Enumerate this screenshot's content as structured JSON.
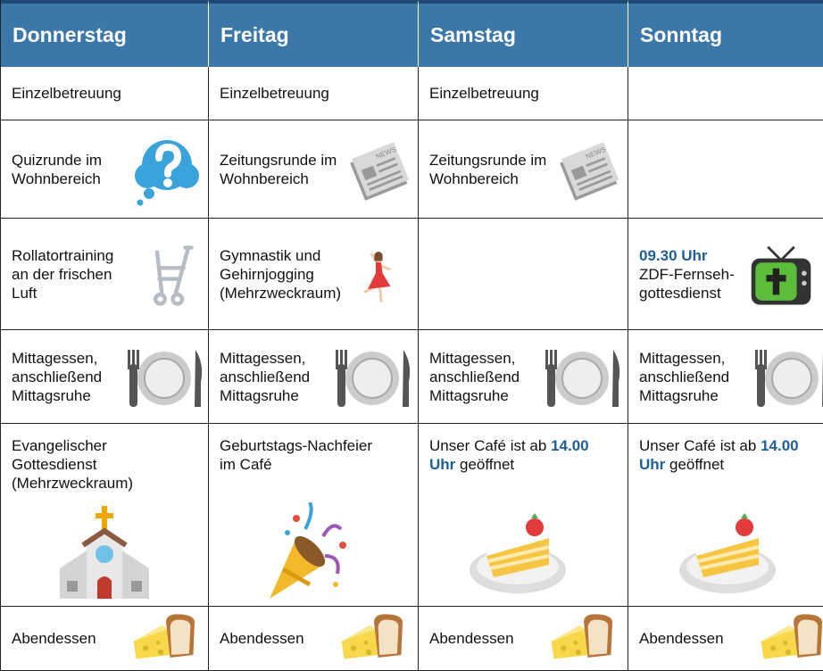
{
  "table": {
    "header": [
      "Donnerstag",
      "Freitag",
      "Samstag",
      "Sonntag"
    ],
    "rows": [
      [
        "Einzelbetreuung",
        "Einzelbetreuung",
        "Einzelbetreuung",
        null
      ],
      [
        "Quizrunde im\nWohnbereich",
        "Zeitungsrunde im\nWohnbereich",
        "Zeitungsrunde im\nWohnbereich",
        null
      ],
      [
        "Rollatortraining\nan der frischen\nLuft",
        "Gymnastik und\nGehirnjogging\n(Mehrzweckraum)",
        null,
        {
          "parts": [
            {
              "text": "09.30 Uhr",
              "bold": true
            },
            {
              "text": "ZDF-Fernseh-\ngottesdienst"
            }
          ]
        }
      ],
      [
        "Mittagessen,\nanschließend\nMittagsruhe",
        "Mittagessen,\nanschließend\nMittagsruhe",
        "Mittagessen,\nanschließend\nMittagsruhe",
        "Mittagessen,\nanschließend\nMittagsruhe"
      ],
      [
        "Evangelischer\nGottesdienst\n(Mehrzweckraum)",
        "Geburtstags-Nachfeier\nim Café",
        {
          "parts": [
            {
              "text": "Unser Café ist ab "
            },
            {
              "text": "14.00\nUhr",
              "bold": true
            },
            {
              "text": " geöffnet"
            }
          ]
        },
        {
          "parts": [
            {
              "text": "Unser Café ist ab "
            },
            {
              "text": "14.00\nUhr",
              "bold": true
            },
            {
              "text": " geöffnet"
            }
          ]
        }
      ],
      [
        "Abendessen",
        "Abendessen",
        "Abendessen",
        "Abendessen"
      ]
    ]
  }
}
